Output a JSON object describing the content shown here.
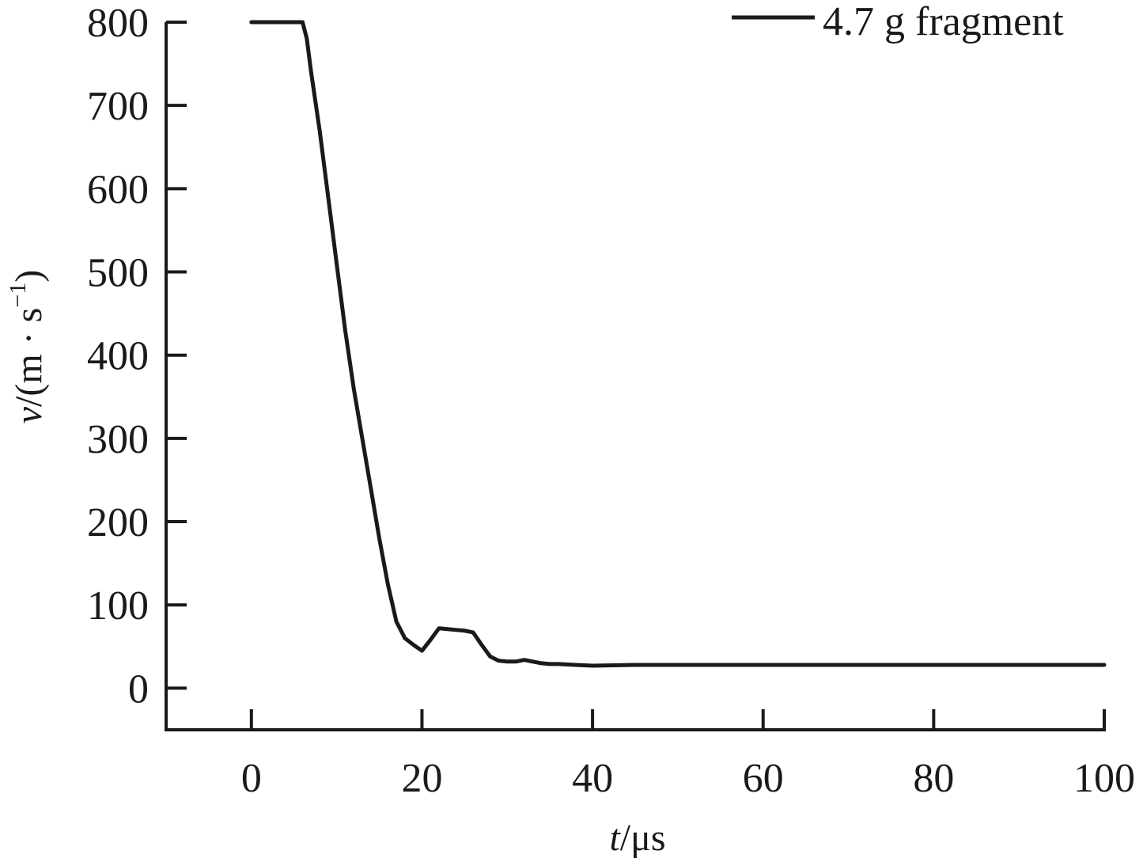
{
  "chart_data": {
    "type": "line",
    "title": "",
    "xlabel": {
      "var": "t",
      "unit": "/μs"
    },
    "ylabel": {
      "var": "v",
      "unit": "/(m · s",
      "sup": "−1",
      "close": ")"
    },
    "xlim": [
      -10,
      100
    ],
    "ylim": [
      -50,
      800
    ],
    "xticks": [
      0,
      20,
      40,
      60,
      80,
      100
    ],
    "yticks": [
      0,
      100,
      200,
      300,
      400,
      500,
      600,
      700,
      800
    ],
    "grid": false,
    "legend_position": "top-right",
    "series": [
      {
        "name": "4.7 g fragment",
        "color": "#1a1a1a",
        "x": [
          0,
          6,
          6.5,
          7,
          8,
          9,
          10,
          11,
          12,
          13,
          14,
          15,
          16,
          17,
          18,
          19,
          20,
          21,
          22,
          23,
          24,
          25,
          26,
          27,
          28,
          29,
          30,
          31,
          32,
          33,
          34,
          35,
          36,
          38,
          40,
          45,
          50,
          60,
          70,
          80,
          90,
          100
        ],
        "y": [
          800,
          800,
          780,
          740,
          670,
          590,
          510,
          430,
          360,
          300,
          240,
          180,
          125,
          80,
          60,
          52,
          45,
          58,
          72,
          71,
          70,
          69,
          67,
          52,
          38,
          33,
          32,
          32,
          34,
          32,
          30,
          29,
          29,
          28,
          27,
          28,
          28,
          28,
          28,
          28,
          28,
          28
        ]
      }
    ]
  }
}
